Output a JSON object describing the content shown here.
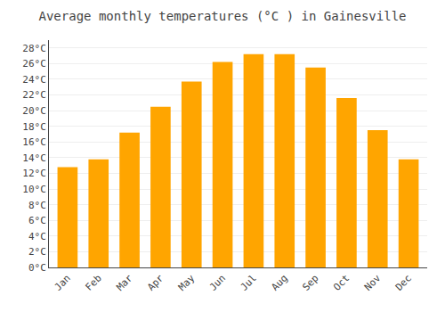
{
  "chart_data": {
    "type": "bar",
    "title": "Average monthly temperatures (°C ) in Gainesville",
    "categories": [
      "Jan",
      "Feb",
      "Mar",
      "Apr",
      "May",
      "Jun",
      "Jul",
      "Aug",
      "Sep",
      "Oct",
      "Nov",
      "Dec"
    ],
    "values": [
      12.8,
      13.8,
      17.2,
      20.5,
      23.7,
      26.2,
      27.2,
      27.2,
      25.5,
      21.6,
      17.5,
      13.8
    ],
    "color": "#FFA500",
    "ylim": [
      0,
      29
    ],
    "yticks": [
      {
        "value": 0,
        "label": "0°C"
      },
      {
        "value": 2,
        "label": "2°C"
      },
      {
        "value": 4,
        "label": "4°C"
      },
      {
        "value": 6,
        "label": "6°C"
      },
      {
        "value": 8,
        "label": "8°C"
      },
      {
        "value": 10,
        "label": "10°C"
      },
      {
        "value": 12,
        "label": "12°C"
      },
      {
        "value": 14,
        "label": "14°C"
      },
      {
        "value": 16,
        "label": "16°C"
      },
      {
        "value": 18,
        "label": "18°C"
      },
      {
        "value": 20,
        "label": "20°C"
      },
      {
        "value": 22,
        "label": "22°C"
      },
      {
        "value": 24,
        "label": "24°C"
      },
      {
        "value": 26,
        "label": "26°C"
      },
      {
        "value": 28,
        "label": "28°C"
      }
    ],
    "grid": true
  }
}
